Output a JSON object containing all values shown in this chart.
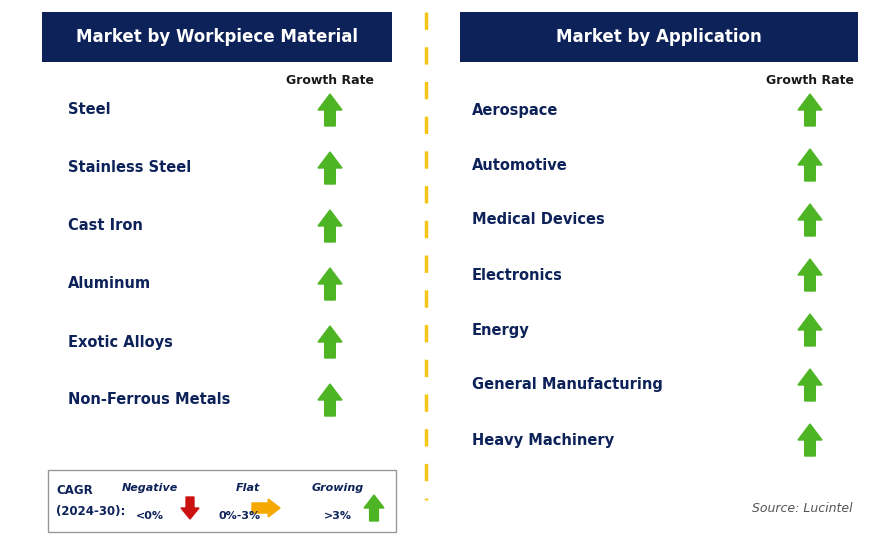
{
  "left_title": "Market by Workpiece Material",
  "right_title": "Market by Application",
  "left_items": [
    "Steel",
    "Stainless Steel",
    "Cast Iron",
    "Aluminum",
    "Exotic Alloys",
    "Non-Ferrous Metals"
  ],
  "right_items": [
    "Aerospace",
    "Automotive",
    "Medical Devices",
    "Electronics",
    "Energy",
    "General Manufacturing",
    "Heavy Machinery"
  ],
  "growth_rate_label": "Growth Rate",
  "header_bg": "#0d2259",
  "header_text": "#ffffff",
  "item_text_color": "#0d2259",
  "divider_color": "#f5c518",
  "background_color": "#ffffff",
  "legend_cagr_line1": "CAGR",
  "legend_cagr_line2": "(2024-30):",
  "legend_negative_label": "Negative",
  "legend_negative_sub": "<0%",
  "legend_flat_label": "Flat",
  "legend_flat_sub": "0%-3%",
  "legend_growing_label": "Growing",
  "legend_growing_sub": ">3%",
  "source_text": "Source: Lucintel",
  "green_color": "#4db524",
  "red_color": "#cc1111",
  "orange_color": "#f5a800"
}
